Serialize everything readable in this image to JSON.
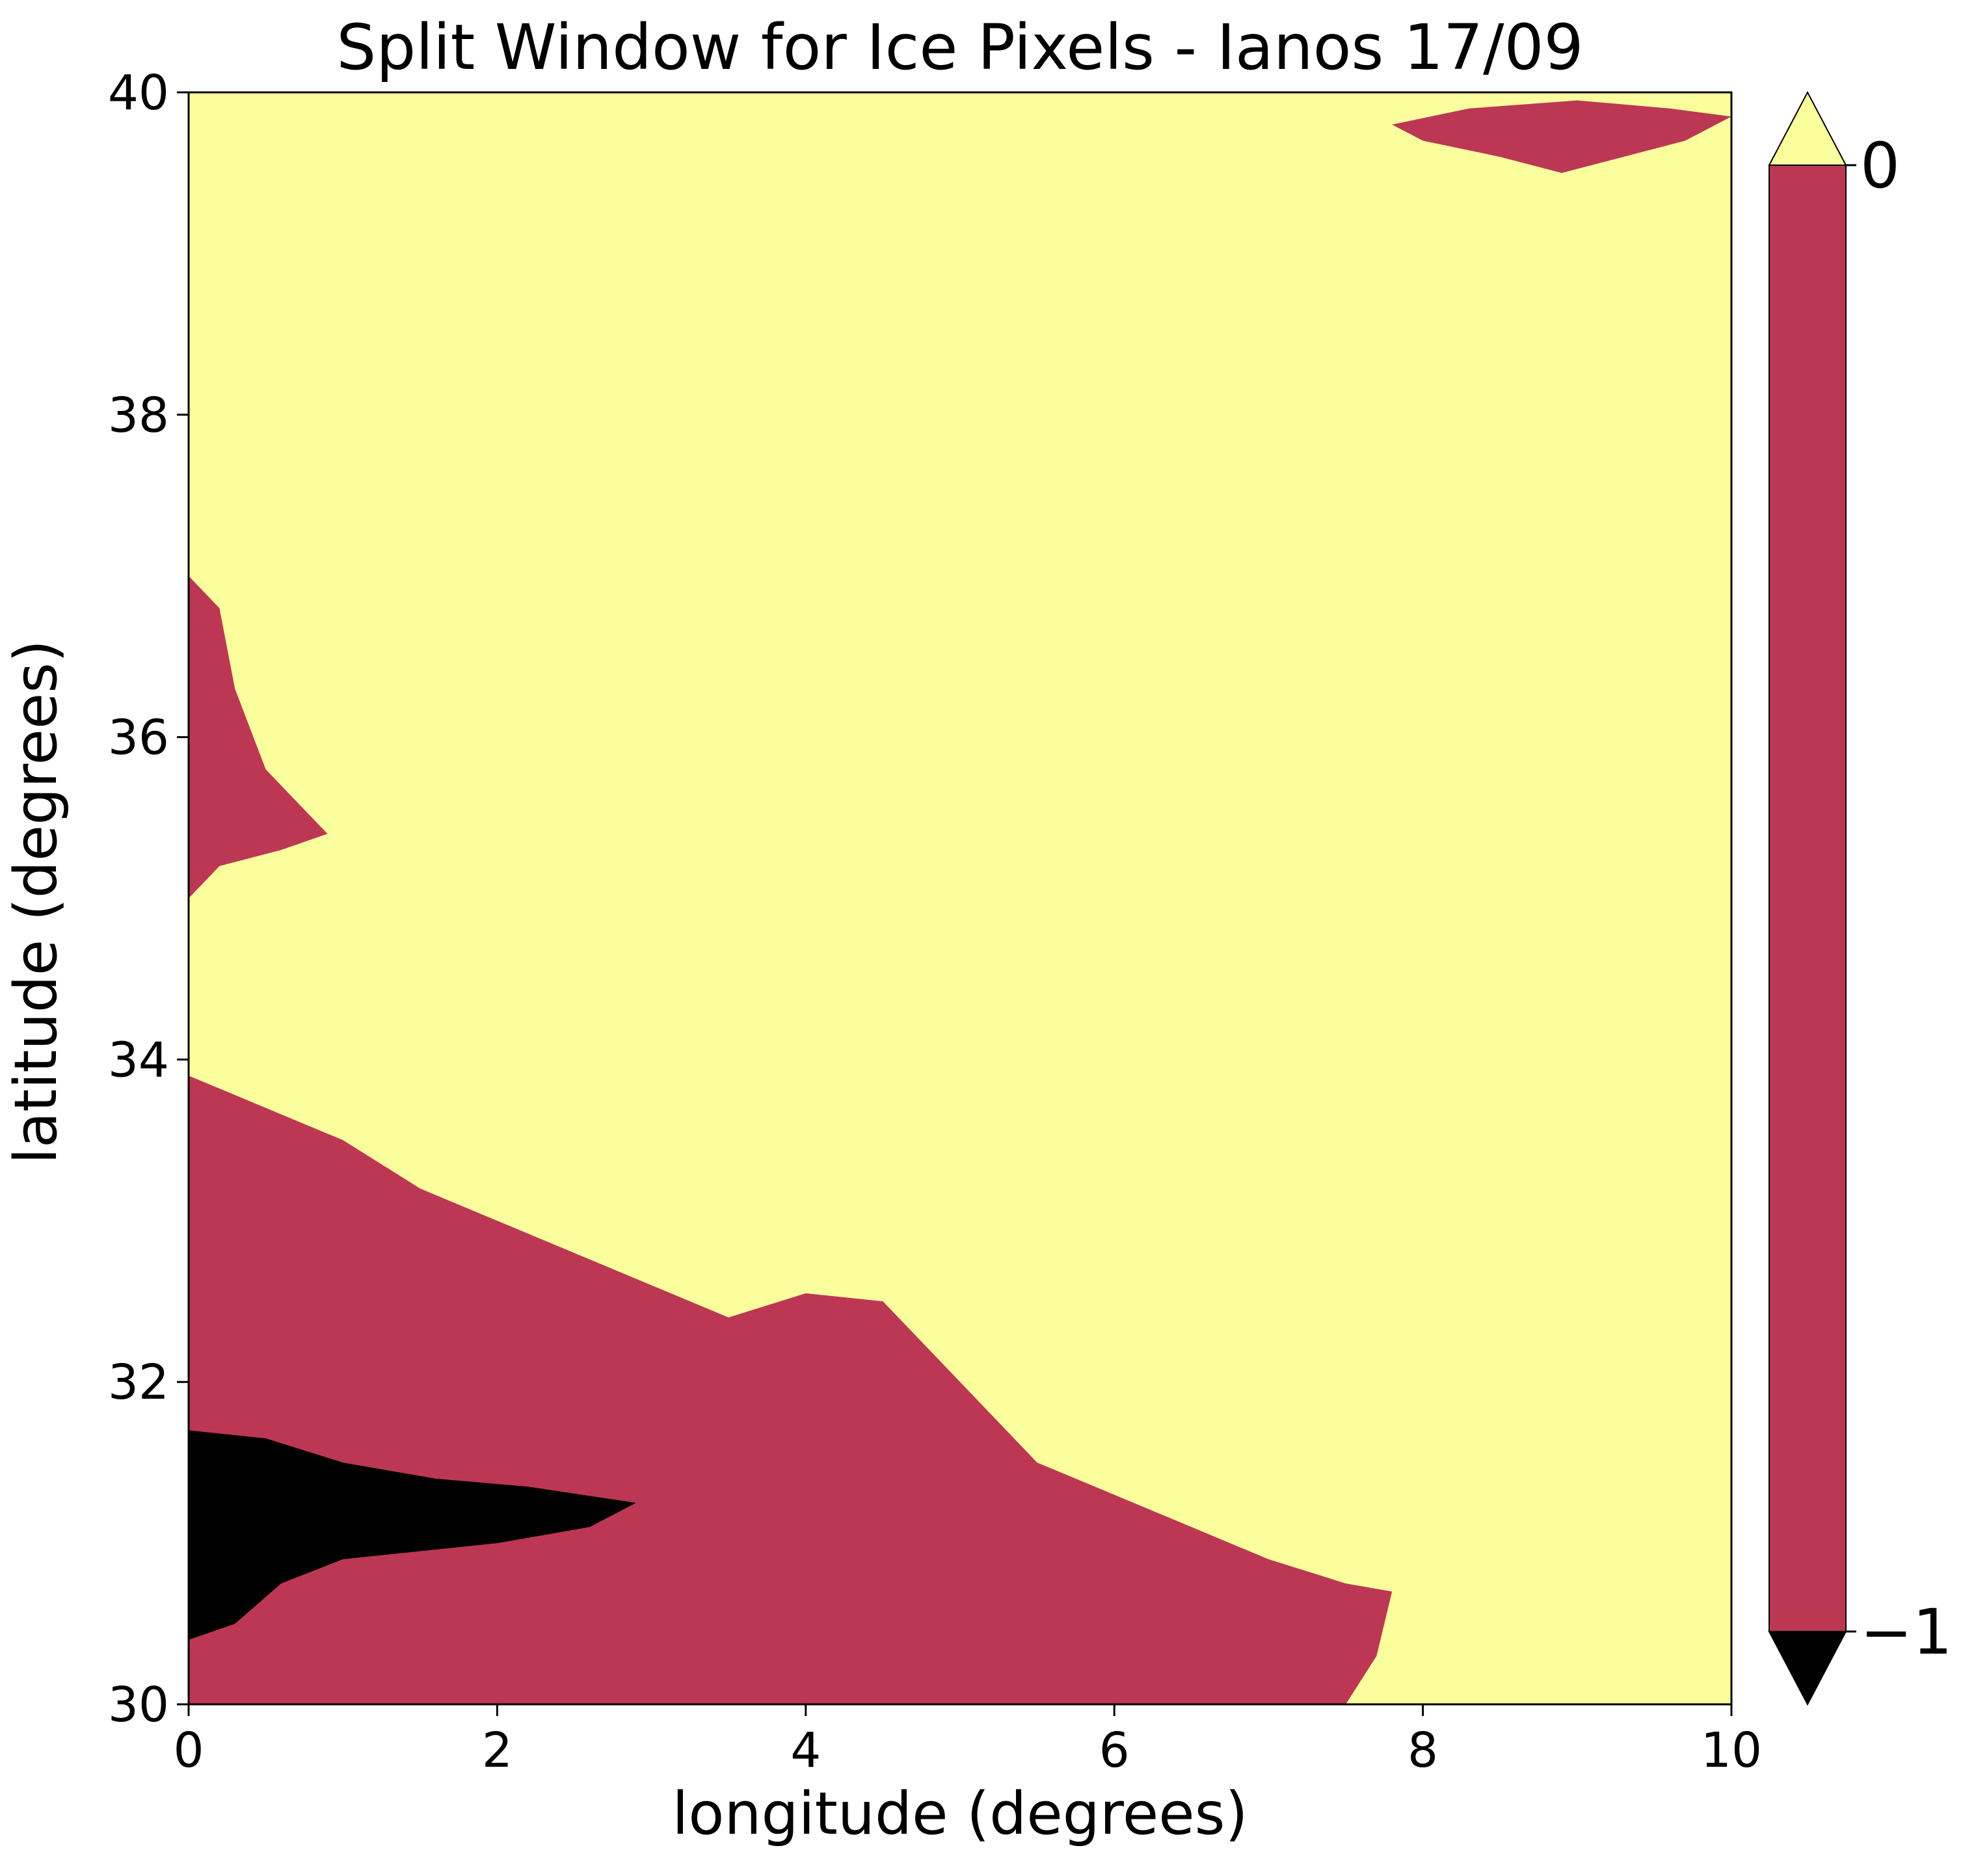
{
  "chart_data": {
    "type": "heatmap",
    "title": "Split Window for Ice Pixels - Ianos 17/09",
    "xlabel": "longitude (degrees)",
    "ylabel": "latitude (degrees)",
    "xlim": [
      0,
      10
    ],
    "ylim": [
      30,
      40
    ],
    "xticks": [
      0,
      2,
      4,
      6,
      8,
      10
    ],
    "xtick_labels": [
      "0",
      "2",
      "4",
      "6",
      "8",
      "10"
    ],
    "yticks": [
      30,
      32,
      34,
      36,
      38,
      40
    ],
    "ytick_labels": [
      "30",
      "32",
      "34",
      "36",
      "38",
      "40"
    ],
    "grid": false,
    "classes": [
      {
        "value": 0,
        "color": "#fbfe9c"
      },
      {
        "value": -1,
        "color": "#bc3754"
      },
      {
        "value": -2,
        "color": "#000000"
      }
    ],
    "colorbar": {
      "placement": "right",
      "range": [
        -1,
        0
      ],
      "extend": "both",
      "ticks": [
        0,
        -1
      ],
      "tick_labels": [
        "0",
        "−1"
      ],
      "under_color": "#000000",
      "over_color": "#fbfe9c",
      "main_color": "#bc3754"
    },
    "regions": [
      {
        "value": -1,
        "description_points_lon_lat": [
          [
            0.0,
            33.9
          ],
          [
            0.5,
            33.7
          ],
          [
            1.0,
            33.5
          ],
          [
            1.5,
            33.2
          ],
          [
            2.0,
            33.0
          ],
          [
            2.5,
            32.8
          ],
          [
            3.0,
            32.6
          ],
          [
            3.5,
            32.4
          ],
          [
            4.0,
            32.55
          ],
          [
            4.5,
            32.5
          ],
          [
            4.8,
            32.2
          ],
          [
            5.2,
            31.8
          ],
          [
            5.5,
            31.5
          ],
          [
            6.0,
            31.3
          ],
          [
            6.5,
            31.1
          ],
          [
            7.0,
            30.9
          ],
          [
            7.5,
            30.75
          ],
          [
            7.8,
            30.7
          ],
          [
            7.7,
            30.3
          ],
          [
            7.5,
            30.0
          ],
          [
            0.0,
            30.0
          ]
        ]
      },
      {
        "value": -1,
        "description_points_lon_lat": [
          [
            0.0,
            37.0
          ],
          [
            0.2,
            36.8
          ],
          [
            0.3,
            36.3
          ],
          [
            0.5,
            35.8
          ],
          [
            0.9,
            35.4
          ],
          [
            0.6,
            35.3
          ],
          [
            0.2,
            35.2
          ],
          [
            0.0,
            35.0
          ]
        ]
      },
      {
        "value": -1,
        "description_points_lon_lat": [
          [
            7.8,
            39.8
          ],
          [
            8.3,
            39.9
          ],
          [
            9.0,
            39.95
          ],
          [
            9.6,
            39.9
          ],
          [
            10.0,
            39.85
          ],
          [
            9.7,
            39.7
          ],
          [
            9.3,
            39.6
          ],
          [
            8.9,
            39.5
          ],
          [
            8.5,
            39.6
          ],
          [
            8.0,
            39.7
          ]
        ]
      },
      {
        "value": -2,
        "description_points_lon_lat": [
          [
            0.0,
            31.7
          ],
          [
            0.5,
            31.65
          ],
          [
            1.0,
            31.5
          ],
          [
            1.6,
            31.4
          ],
          [
            2.2,
            31.35
          ],
          [
            2.9,
            31.25
          ],
          [
            2.6,
            31.1
          ],
          [
            2.0,
            31.0
          ],
          [
            1.5,
            30.95
          ],
          [
            1.0,
            30.9
          ],
          [
            0.6,
            30.75
          ],
          [
            0.3,
            30.5
          ],
          [
            0.0,
            30.4
          ]
        ]
      }
    ]
  }
}
